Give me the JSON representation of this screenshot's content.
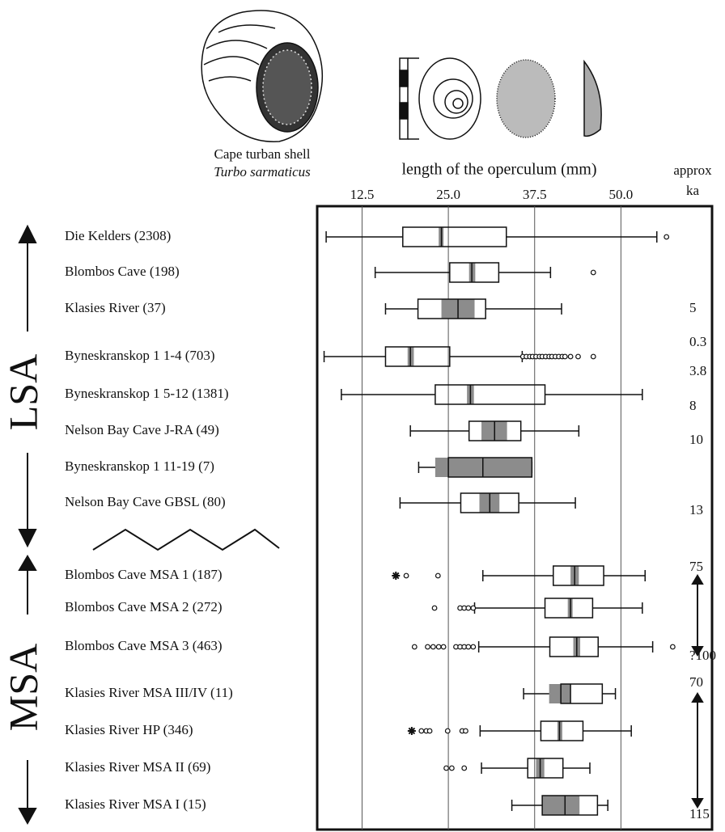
{
  "chart_data": {
    "type": "box",
    "caption": [
      "Cape turban shell",
      "Turbo sarmaticus"
    ],
    "x_label": "length of the operculum (mm)",
    "right_label": [
      "approx",
      "ka"
    ],
    "xlim": [
      6.0,
      63.2
    ],
    "xticks": [
      12.5,
      {
        "value": 25,
        "label": "25.0"
      },
      37.5,
      {
        "value": 50,
        "label": "50.0"
      }
    ],
    "grid": true,
    "ci_color": "#8c8c8c",
    "groups": [
      "LSA",
      "MSA"
    ],
    "categories": [
      "Die Kelders (2308)",
      "Blombos Cave (198)",
      "Klasies River (37)",
      "Byneskranskop 1 1-4  (703)",
      "Byneskranskop 1 5-12  (1381)",
      "Nelson Bay Cave J-RA (49)",
      "Byneskranskop 1 11-19 (7)",
      "Nelson Bay Cave GBSL (80)",
      "Blombos Cave MSA 1 (187)",
      "Blombos Cave MSA 2 (272)",
      "Blombos Cave MSA 3 (463)",
      "Klasies River MSA III/IV (11)",
      "Klasies River HP (346)",
      "Klasies River MSA II (69)",
      "Klasies River MSA I (15)"
    ],
    "boxes": [
      {
        "whisker_low": 7.3,
        "q1": 18.4,
        "median": 24.0,
        "q3": 33.4,
        "whisker_high": 55.2,
        "ci": [
          23.6,
          24.3
        ],
        "outliers": [
          56.6
        ],
        "extremes": []
      },
      {
        "whisker_low": 14.4,
        "q1": 25.2,
        "median": 28.4,
        "q3": 32.3,
        "whisker_high": 39.8,
        "ci": [
          28.0,
          28.9
        ],
        "outliers": [
          46.0
        ],
        "extremes": []
      },
      {
        "whisker_low": 15.9,
        "q1": 20.6,
        "median": 26.4,
        "q3": 30.4,
        "whisker_high": 41.4,
        "ci": [
          24.0,
          28.8
        ],
        "outliers": [],
        "extremes": []
      },
      {
        "whisker_low": 7.0,
        "q1": 15.9,
        "median": 19.5,
        "q3": 25.2,
        "whisker_high": 35.7,
        "ci": [
          19.1,
          20.0
        ],
        "outliers": [
          35.8,
          36.3,
          36.8,
          37.2,
          37.7,
          38.2,
          38.6,
          39.1,
          39.6,
          40.0,
          40.5,
          41.0,
          41.5,
          41.9,
          42.7,
          43.8,
          46.0
        ],
        "extremes": []
      },
      {
        "whisker_low": 9.5,
        "q1": 23.1,
        "median": 28.2,
        "q3": 39.0,
        "whisker_high": 53.1,
        "ci": [
          27.7,
          28.7
        ],
        "outliers": [],
        "extremes": []
      },
      {
        "whisker_low": 19.5,
        "q1": 28.0,
        "median": 31.7,
        "q3": 35.5,
        "whisker_high": 43.9,
        "ci": [
          29.8,
          33.5
        ],
        "outliers": [],
        "extremes": []
      },
      {
        "whisker_low": 20.7,
        "q1": 25.0,
        "median": 30.0,
        "q3": 37.1,
        "whisker_high": 37.1,
        "ci": [
          23.1,
          37.1
        ],
        "outliers": [],
        "extremes": []
      },
      {
        "whisker_low": 18.0,
        "q1": 26.8,
        "median": 31.0,
        "q3": 35.2,
        "whisker_high": 43.4,
        "ci": [
          29.5,
          32.4
        ],
        "outliers": [],
        "extremes": []
      },
      {
        "whisker_low": 30.0,
        "q1": 40.2,
        "median": 43.3,
        "q3": 47.5,
        "whisker_high": 53.5,
        "ci": [
          42.7,
          43.9
        ],
        "outliers": [
          18.9,
          23.5
        ],
        "extremes": [
          17.4
        ]
      },
      {
        "whisker_low": 28.8,
        "q1": 39.0,
        "median": 42.7,
        "q3": 45.9,
        "whisker_high": 53.1,
        "ci": [
          42.3,
          43.0
        ],
        "outliers": [
          23.0,
          26.7,
          27.3,
          27.9,
          28.6
        ],
        "extremes": []
      },
      {
        "whisker_low": 29.4,
        "q1": 39.7,
        "median": 43.6,
        "q3": 46.7,
        "whisker_high": 54.6,
        "ci": [
          43.1,
          44.1
        ],
        "outliers": [
          20.1,
          22.0,
          22.8,
          23.6,
          24.3,
          26.1,
          26.7,
          27.3,
          27.9,
          28.6,
          57.5
        ],
        "extremes": []
      },
      {
        "whisker_low": 35.9,
        "q1": 41.3,
        "median": 42.7,
        "q3": 47.3,
        "whisker_high": 49.2,
        "ci": [
          39.6,
          42.7
        ],
        "outliers": [],
        "extremes": []
      },
      {
        "whisker_low": 29.6,
        "q1": 38.4,
        "median": 41.1,
        "q3": 44.5,
        "whisker_high": 51.5,
        "ci": [
          40.8,
          41.5
        ],
        "outliers": [
          21.1,
          21.8,
          22.3,
          24.9,
          27.0,
          27.5
        ],
        "extremes": [
          19.7
        ]
      },
      {
        "whisker_low": 29.8,
        "q1": 36.5,
        "median": 38.3,
        "q3": 41.6,
        "whisker_high": 45.5,
        "ci": [
          37.7,
          38.9
        ],
        "outliers": [
          24.7,
          25.5,
          27.3
        ],
        "extremes": []
      },
      {
        "whisker_low": 34.2,
        "q1": 38.6,
        "median": 41.9,
        "q3": 46.6,
        "whisker_high": 48.1,
        "ci": [
          38.6,
          44.0
        ],
        "outliers": [],
        "extremes": []
      }
    ],
    "ka_labels": [
      "5",
      "0.3",
      "3.8",
      "8",
      "10",
      "13",
      "75",
      "?100",
      "70",
      "115"
    ]
  }
}
